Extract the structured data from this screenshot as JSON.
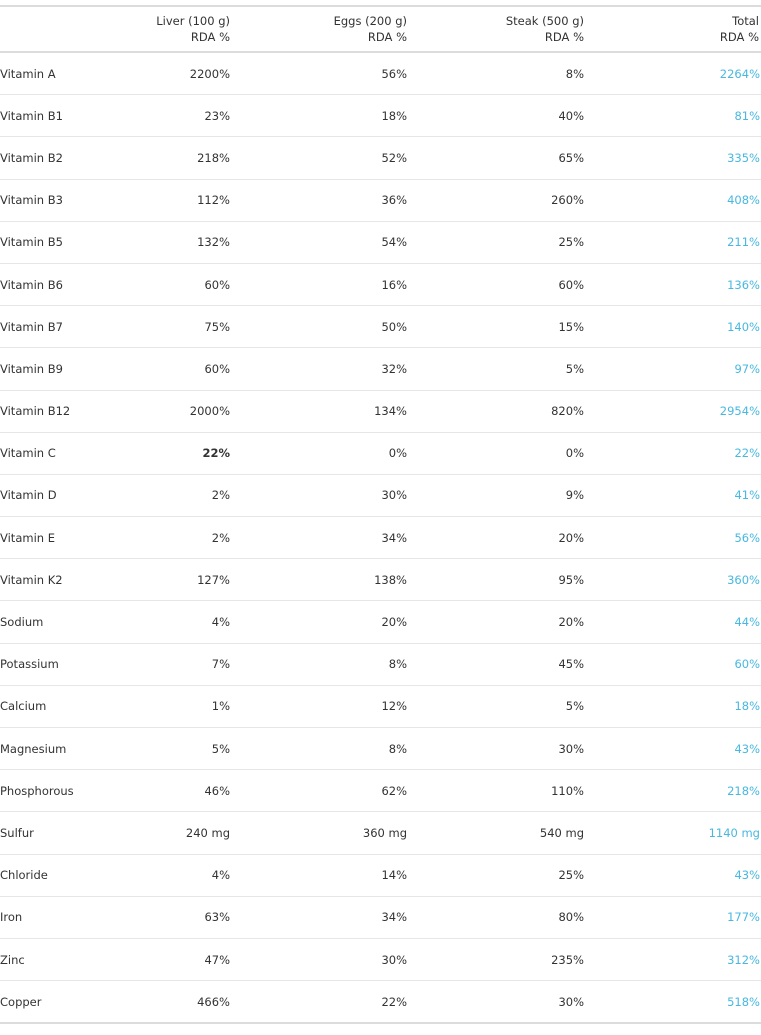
{
  "columns": [
    {
      "line1": "",
      "line2": ""
    },
    {
      "line1": "Liver (100 g)",
      "line2": "RDA %"
    },
    {
      "line1": "Eggs  (200 g)",
      "line2": "RDA %"
    },
    {
      "line1": "Steak (500 g)",
      "line2": "RDA %"
    },
    {
      "line1": "Total",
      "line2": "RDA %"
    }
  ],
  "accent_color": "#48b8e0",
  "rows": [
    {
      "name": "Vitamin A",
      "liver": "2200%",
      "eggs": "56%",
      "steak": "8%",
      "total": "2264%"
    },
    {
      "name": "Vitamin B1",
      "liver": "23%",
      "eggs": "18%",
      "steak": "40%",
      "total": "81%"
    },
    {
      "name": "Vitamin B2",
      "liver": "218%",
      "eggs": "52%",
      "steak": "65%",
      "total": "335%"
    },
    {
      "name": "Vitamin B3",
      "liver": "112%",
      "eggs": "36%",
      "steak": "260%",
      "total": "408%"
    },
    {
      "name": "Vitamin B5",
      "liver": "132%",
      "eggs": "54%",
      "steak": "25%",
      "total": "211%"
    },
    {
      "name": "Vitamin B6",
      "liver": "60%",
      "eggs": "16%",
      "steak": "60%",
      "total": "136%"
    },
    {
      "name": "Vitamin B7",
      "liver": "75%",
      "eggs": "50%",
      "steak": "15%",
      "total": "140%"
    },
    {
      "name": "Vitamin B9",
      "liver": "60%",
      "eggs": "32%",
      "steak": "5%",
      "total": "97%"
    },
    {
      "name": "Vitamin B12",
      "liver": "2000%",
      "eggs": "134%",
      "steak": "820%",
      "total": "2954%"
    },
    {
      "name": "Vitamin C",
      "liver": "22%",
      "eggs": "0%",
      "steak": "0%",
      "total": "22%",
      "liver_bold": true
    },
    {
      "name": "Vitamin D",
      "liver": "2%",
      "eggs": "30%",
      "steak": "9%",
      "total": "41%"
    },
    {
      "name": "Vitamin E",
      "liver": "2%",
      "eggs": "34%",
      "steak": "20%",
      "total": "56%"
    },
    {
      "name": "Vitamin K2",
      "liver": "127%",
      "eggs": "138%",
      "steak": "95%",
      "total": "360%"
    },
    {
      "name": "Sodium",
      "liver": "4%",
      "eggs": "20%",
      "steak": "20%",
      "total": "44%"
    },
    {
      "name": "Potassium",
      "liver": "7%",
      "eggs": "8%",
      "steak": "45%",
      "total": "60%"
    },
    {
      "name": "Calcium",
      "liver": "1%",
      "eggs": "12%",
      "steak": "5%",
      "total": "18%"
    },
    {
      "name": "Magnesium",
      "liver": "5%",
      "eggs": "8%",
      "steak": "30%",
      "total": "43%"
    },
    {
      "name": "Phosphorous",
      "liver": "46%",
      "eggs": "62%",
      "steak": "110%",
      "total": "218%"
    },
    {
      "name": "Sulfur",
      "liver": "240 mg",
      "eggs": "360 mg",
      "steak": "540 mg",
      "total": "1140 mg"
    },
    {
      "name": "Chloride",
      "liver": "4%",
      "eggs": "14%",
      "steak": "25%",
      "total": "43%"
    },
    {
      "name": "Iron",
      "liver": "63%",
      "eggs": "34%",
      "steak": "80%",
      "total": "177%"
    },
    {
      "name": "Zinc",
      "liver": "47%",
      "eggs": "30%",
      "steak": "235%",
      "total": "312%"
    },
    {
      "name": "Copper",
      "liver": "466%",
      "eggs": "22%",
      "steak": "30%",
      "total": "518%"
    }
  ]
}
